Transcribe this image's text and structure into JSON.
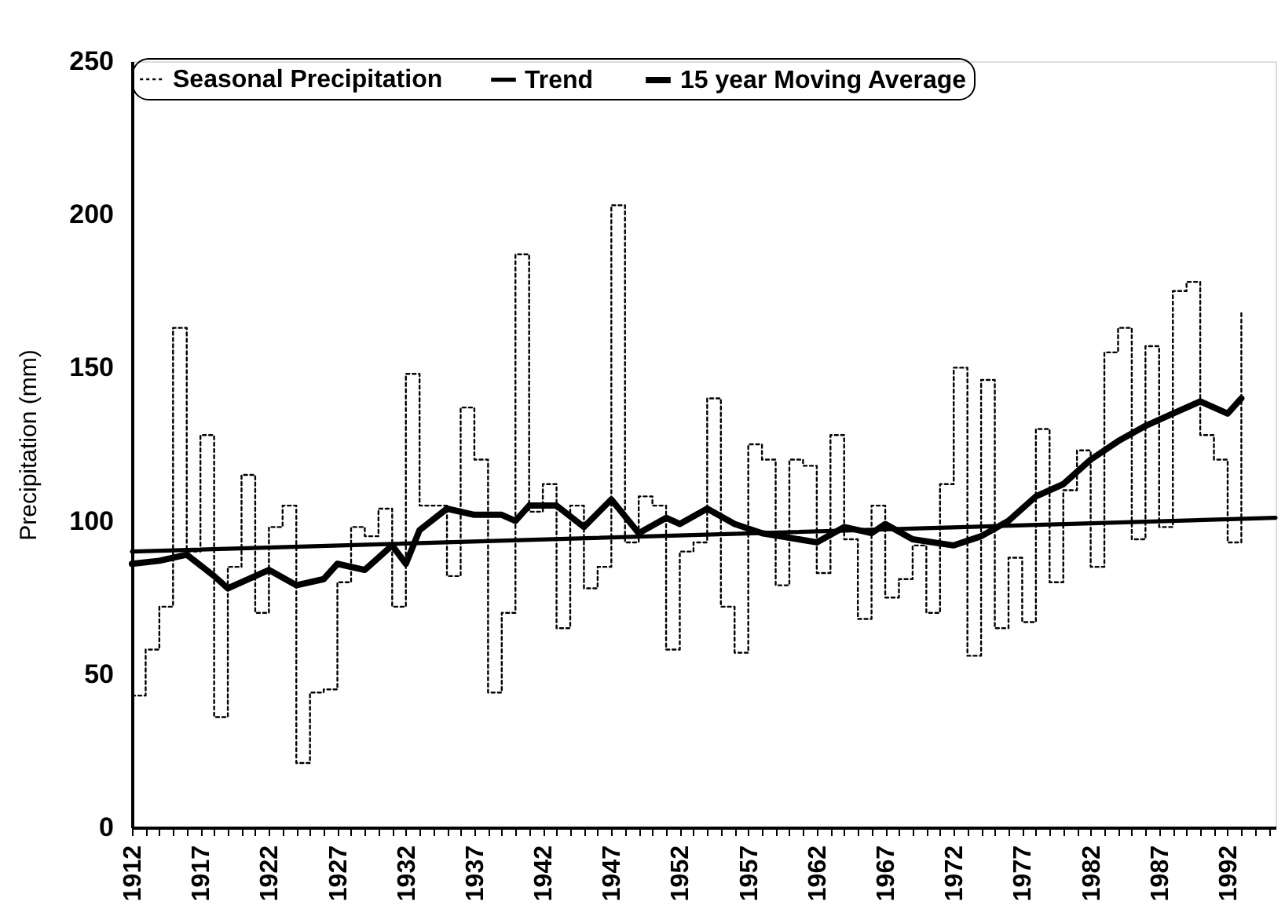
{
  "chart_data": {
    "type": "step",
    "ylabel": "Precipitation (mm)",
    "xlim": [
      1912,
      1995.5
    ],
    "ylim": [
      0,
      250
    ],
    "yticks": [
      0,
      50,
      100,
      150,
      200,
      250
    ],
    "xticks": [
      1912,
      {
        "value": 1913,
        "label": null
      },
      {
        "value": 1914,
        "label": null
      },
      {
        "value": 1915,
        "label": null
      },
      {
        "value": 1916,
        "label": null
      },
      1917,
      {
        "value": 1918,
        "label": null
      },
      {
        "value": 1919,
        "label": null
      },
      {
        "value": 1920,
        "label": null
      },
      {
        "value": 1921,
        "label": null
      },
      1922,
      {
        "value": 1923,
        "label": null
      },
      {
        "value": 1924,
        "label": null
      },
      {
        "value": 1925,
        "label": null
      },
      {
        "value": 1926,
        "label": null
      },
      1927,
      {
        "value": 1928,
        "label": null
      },
      {
        "value": 1929,
        "label": null
      },
      {
        "value": 1930,
        "label": null
      },
      {
        "value": 1931,
        "label": null
      },
      1932,
      {
        "value": 1933,
        "label": null
      },
      {
        "value": 1934,
        "label": null
      },
      {
        "value": 1935,
        "label": null
      },
      {
        "value": 1936,
        "label": null
      },
      1937,
      {
        "value": 1938,
        "label": null
      },
      {
        "value": 1939,
        "label": null
      },
      {
        "value": 1940,
        "label": null
      },
      {
        "value": 1941,
        "label": null
      },
      1942,
      {
        "value": 1943,
        "label": null
      },
      {
        "value": 1944,
        "label": null
      },
      {
        "value": 1945,
        "label": null
      },
      {
        "value": 1946,
        "label": null
      },
      1947,
      {
        "value": 1948,
        "label": null
      },
      {
        "value": 1949,
        "label": null
      },
      {
        "value": 1950,
        "label": null
      },
      {
        "value": 1951,
        "label": null
      },
      1952,
      {
        "value": 1953,
        "label": null
      },
      {
        "value": 1954,
        "label": null
      },
      {
        "value": 1955,
        "label": null
      },
      {
        "value": 1956,
        "label": null
      },
      1957,
      {
        "value": 1958,
        "label": null
      },
      {
        "value": 1959,
        "label": null
      },
      {
        "value": 1960,
        "label": null
      },
      {
        "value": 1961,
        "label": null
      },
      1962,
      {
        "value": 1963,
        "label": null
      },
      {
        "value": 1964,
        "label": null
      },
      {
        "value": 1965,
        "label": null
      },
      {
        "value": 1966,
        "label": null
      },
      1967,
      {
        "value": 1968,
        "label": null
      },
      {
        "value": 1969,
        "label": null
      },
      {
        "value": 1970,
        "label": null
      },
      {
        "value": 1971,
        "label": null
      },
      1972,
      {
        "value": 1973,
        "label": null
      },
      {
        "value": 1974,
        "label": null
      },
      {
        "value": 1975,
        "label": null
      },
      {
        "value": 1976,
        "label": null
      },
      1977,
      {
        "value": 1978,
        "label": null
      },
      {
        "value": 1979,
        "label": null
      },
      {
        "value": 1980,
        "label": null
      },
      {
        "value": 1981,
        "label": null
      },
      1982,
      {
        "value": 1983,
        "label": null
      },
      {
        "value": 1984,
        "label": null
      },
      {
        "value": 1985,
        "label": null
      },
      {
        "value": 1986,
        "label": null
      },
      1987,
      {
        "value": 1988,
        "label": null
      },
      {
        "value": 1989,
        "label": null
      },
      {
        "value": 1990,
        "label": null
      },
      {
        "value": 1991,
        "label": null
      },
      1992,
      {
        "value": 1993,
        "label": null
      },
      {
        "value": 1994,
        "label": null
      },
      {
        "value": 1995,
        "label": null
      }
    ],
    "grid": false,
    "legend": "top",
    "marker": "none",
    "series": [
      {
        "name": "Seasonal Precipitation",
        "type": "step",
        "color": "#000000",
        "line_style": "dotted",
        "x": [
          1912,
          1913,
          1914,
          1915,
          1916,
          1917,
          1918,
          1919,
          1920,
          1921,
          1922,
          1923,
          1924,
          1925,
          1926,
          1927,
          1928,
          1929,
          1930,
          1931,
          1932,
          1933,
          1934,
          1935,
          1936,
          1937,
          1938,
          1939,
          1940,
          1941,
          1942,
          1943,
          1944,
          1945,
          1946,
          1947,
          1948,
          1949,
          1950,
          1951,
          1952,
          1953,
          1954,
          1955,
          1956,
          1957,
          1958,
          1959,
          1960,
          1961,
          1962,
          1963,
          1964,
          1965,
          1966,
          1967,
          1968,
          1969,
          1970,
          1971,
          1972,
          1973,
          1974,
          1975,
          1976,
          1977,
          1978,
          1979,
          1980,
          1981,
          1982,
          1983,
          1984,
          1985,
          1986,
          1987,
          1988,
          1989,
          1990,
          1991,
          1992,
          1993
        ],
        "values": [
          43,
          58,
          72,
          163,
          90,
          128,
          36,
          85,
          115,
          70,
          98,
          105,
          21,
          44,
          45,
          80,
          98,
          95,
          104,
          72,
          148,
          105,
          105,
          82,
          137,
          120,
          44,
          70,
          187,
          103,
          112,
          65,
          105,
          78,
          85,
          203,
          93,
          108,
          105,
          58,
          90,
          93,
          140,
          72,
          57,
          125,
          120,
          79,
          120,
          118,
          83,
          128,
          94,
          68,
          105,
          75,
          81,
          92,
          70,
          112,
          150,
          56,
          146,
          65,
          88,
          67,
          130,
          80,
          110,
          123,
          85,
          155,
          163,
          94,
          157,
          98,
          175,
          178,
          128,
          120,
          93,
          168
        ]
      },
      {
        "name": "Trend",
        "type": "line",
        "color": "#000000",
        "line_style": "solid",
        "x": [
          1912,
          1995.5
        ],
        "values": [
          90,
          101
        ]
      },
      {
        "name": "15 year Moving Average",
        "type": "line",
        "color": "#000000",
        "line_style": "solid",
        "x": [
          1912,
          1914,
          1916,
          1918,
          1919,
          1921,
          1922,
          1924,
          1926,
          1927,
          1929,
          1931,
          1932,
          1933,
          1935,
          1937,
          1939,
          1940,
          1941,
          1943,
          1945,
          1947,
          1949,
          1951,
          1952,
          1954,
          1956,
          1958,
          1962,
          1964,
          1966,
          1967,
          1969,
          1972,
          1974,
          1976,
          1978,
          1980,
          1982,
          1984,
          1986,
          1988,
          1990,
          1992,
          1993
        ],
        "values": [
          86,
          87,
          89,
          82,
          78,
          82,
          84,
          79,
          81,
          86,
          84,
          92,
          86,
          97,
          104,
          102,
          102,
          100,
          105,
          105,
          98,
          107,
          96,
          101,
          99,
          104,
          99,
          96,
          93,
          98,
          96,
          99,
          94,
          92,
          95,
          100,
          108,
          112,
          120,
          126,
          131,
          135,
          139,
          135,
          140
        ]
      }
    ]
  }
}
